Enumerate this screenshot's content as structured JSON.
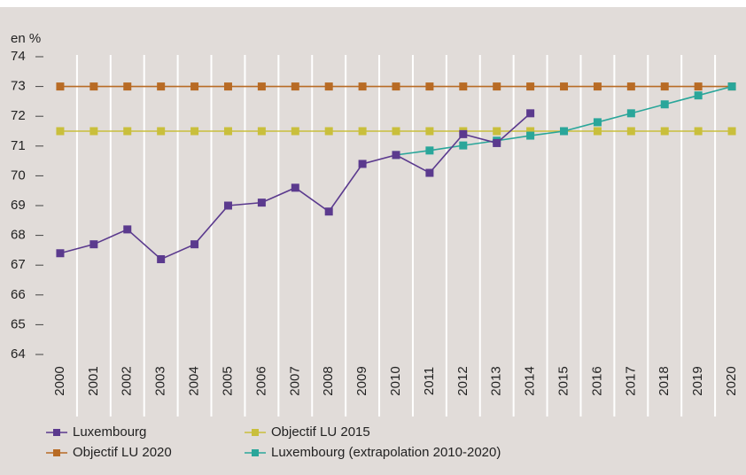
{
  "chart_data": {
    "type": "line",
    "y_label": "en %",
    "categories": [
      "2000",
      "2001",
      "2002",
      "2003",
      "2004",
      "2005",
      "2006",
      "2007",
      "2008",
      "2009",
      "2010",
      "2011",
      "2012",
      "2013",
      "2014",
      "2015",
      "2016",
      "2017",
      "2018",
      "2019",
      "2020"
    ],
    "series": [
      {
        "name": "Luxembourg",
        "color": "#5b3a8e",
        "values": [
          67.4,
          67.7,
          68.2,
          67.2,
          67.7,
          69.0,
          69.1,
          69.6,
          68.8,
          70.4,
          70.7,
          70.1,
          71.4,
          71.1,
          72.1,
          null,
          null,
          null,
          null,
          null,
          null
        ]
      },
      {
        "name": "Objectif LU 2015",
        "color": "#c9bf3c",
        "values": [
          71.5,
          71.5,
          71.5,
          71.5,
          71.5,
          71.5,
          71.5,
          71.5,
          71.5,
          71.5,
          71.5,
          71.5,
          71.5,
          71.5,
          71.5,
          71.5,
          71.5,
          71.5,
          71.5,
          71.5,
          71.5
        ]
      },
      {
        "name": "Objectif LU 2020",
        "color": "#b86b25",
        "values": [
          73,
          73,
          73,
          73,
          73,
          73,
          73,
          73,
          73,
          73,
          73,
          73,
          73,
          73,
          73,
          73,
          73,
          73,
          73,
          73,
          73
        ]
      },
      {
        "name": "Luxembourg (extrapolation 2010-2020)",
        "color": "#2aa69a",
        "values": [
          null,
          null,
          null,
          null,
          null,
          null,
          null,
          null,
          null,
          null,
          70.7,
          70.85,
          71.02,
          71.18,
          71.35,
          71.5,
          71.8,
          72.1,
          72.4,
          72.7,
          73
        ]
      }
    ],
    "ylim": [
      64,
      74
    ],
    "yticks": [
      64,
      65,
      66,
      67,
      68,
      69,
      70,
      71,
      72,
      73,
      74
    ],
    "grid": true
  }
}
